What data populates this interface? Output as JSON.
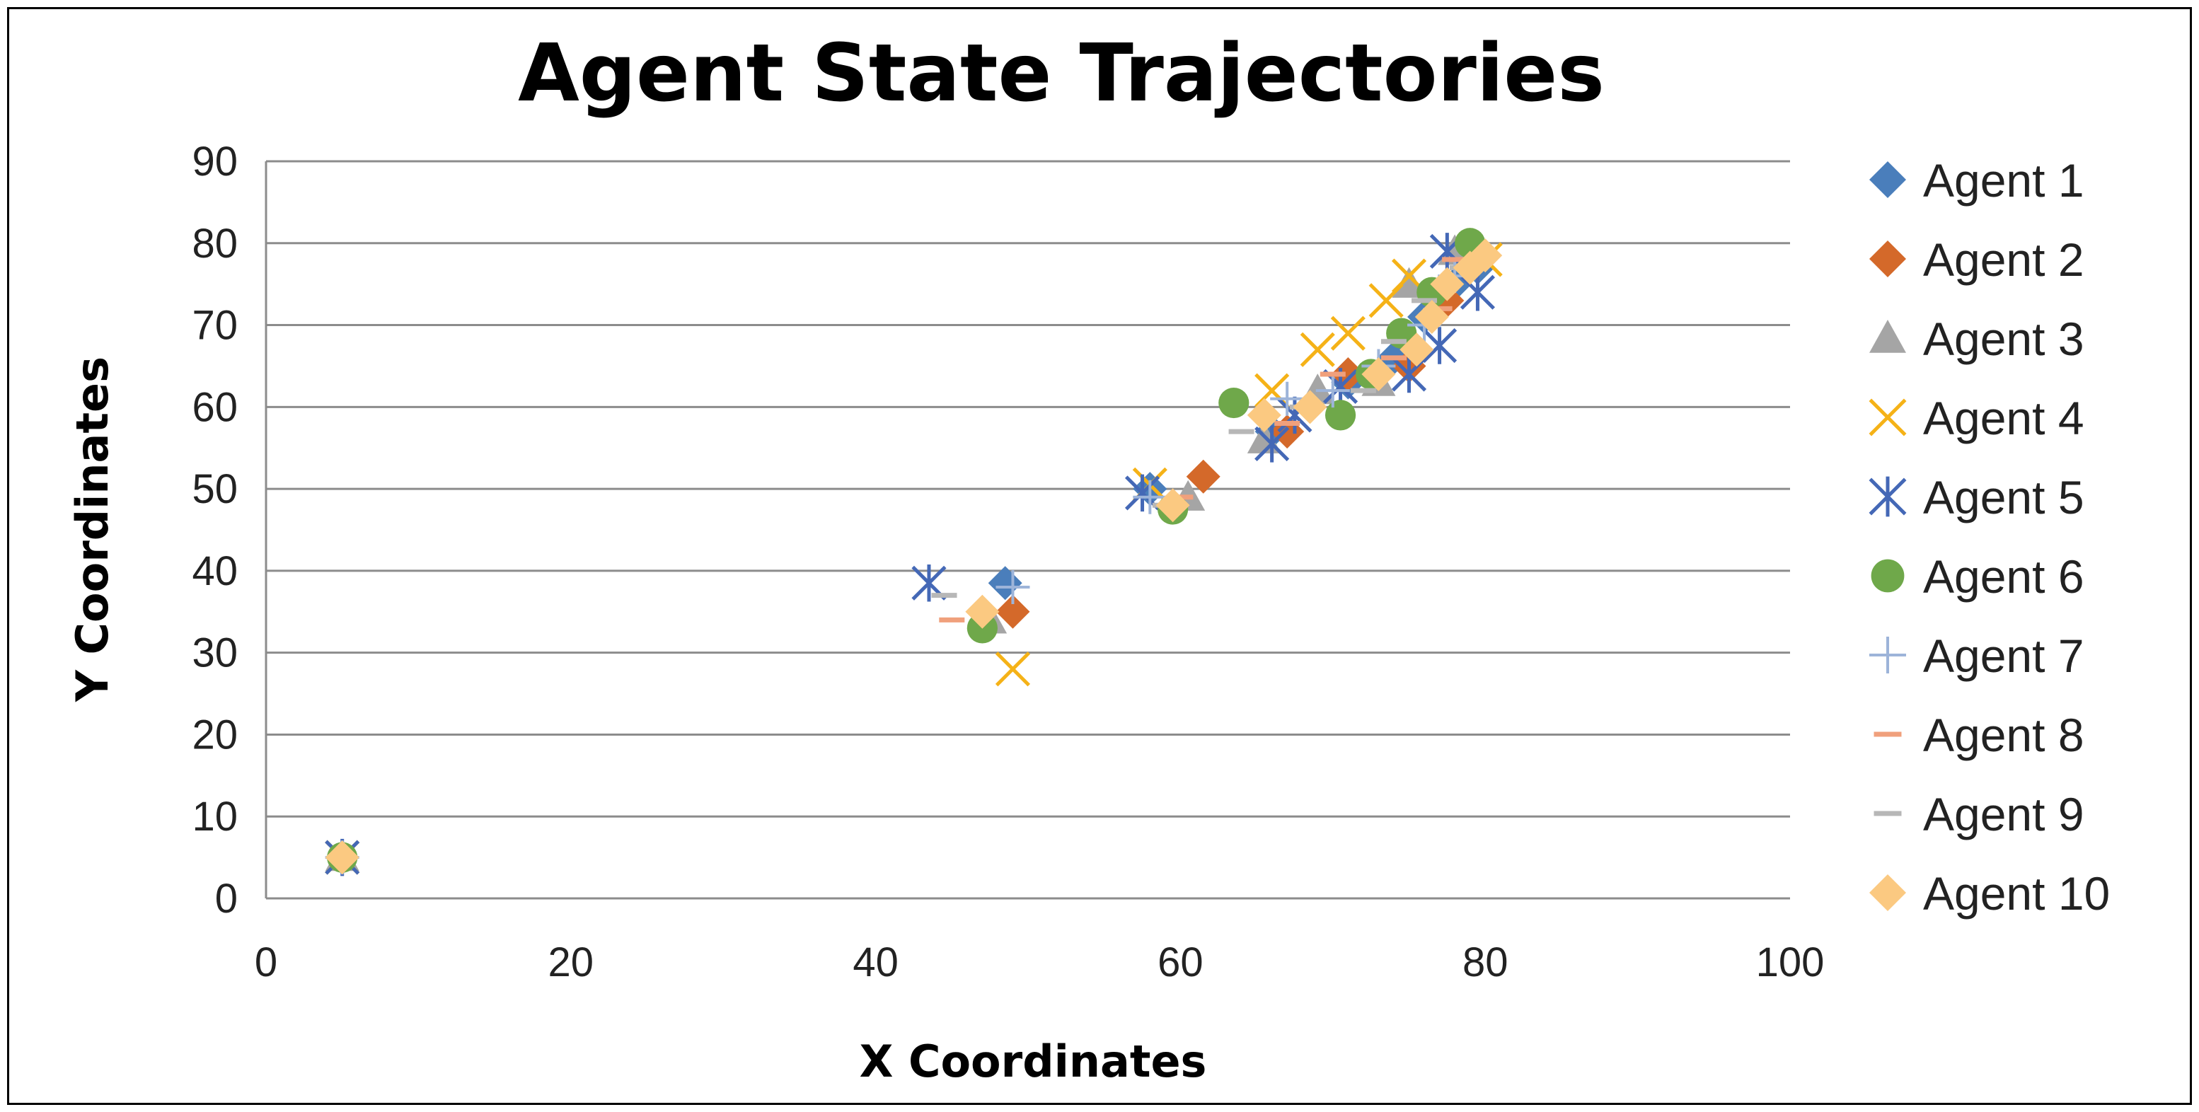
{
  "chart_data": {
    "type": "scatter",
    "title": "Agent State Trajectories",
    "xlabel": "X Coordinates",
    "ylabel": "Y Coordinates",
    "xlim": [
      0,
      100
    ],
    "ylim": [
      0,
      90
    ],
    "xticks": [
      0,
      20,
      40,
      60,
      80,
      100
    ],
    "yticks": [
      0,
      10,
      20,
      30,
      40,
      50,
      60,
      70,
      80,
      90
    ],
    "grid": "horizontal",
    "legend_position": "right",
    "series": [
      {
        "name": "Agent 1",
        "marker": "diamond",
        "color": "#4A7EBB",
        "points": [
          [
            5,
            5
          ],
          [
            48.5,
            38.5
          ],
          [
            58,
            50
          ],
          [
            66,
            57
          ],
          [
            71,
            63
          ],
          [
            74,
            66
          ],
          [
            76,
            71
          ],
          [
            78,
            75
          ],
          [
            79.5,
            77
          ]
        ]
      },
      {
        "name": "Agent 2",
        "marker": "diamond",
        "color": "#D4692A",
        "points": [
          [
            5,
            5
          ],
          [
            49,
            35
          ],
          [
            61.5,
            51.5
          ],
          [
            67,
            57
          ],
          [
            71,
            64
          ],
          [
            75,
            65
          ],
          [
            77.5,
            73
          ],
          [
            78.5,
            79
          ]
        ]
      },
      {
        "name": "Agent 3",
        "marker": "triangle",
        "color": "#A5A5A5",
        "points": [
          [
            5,
            5
          ],
          [
            47.5,
            34
          ],
          [
            60.5,
            49
          ],
          [
            65.5,
            56
          ],
          [
            69,
            62
          ],
          [
            73,
            63
          ],
          [
            75,
            75
          ],
          [
            78,
            79
          ]
        ]
      },
      {
        "name": "Agent 4",
        "marker": "x",
        "color": "#F5B217",
        "points": [
          [
            5,
            5
          ],
          [
            49,
            28
          ],
          [
            58,
            50.5
          ],
          [
            66,
            62
          ],
          [
            69,
            67
          ],
          [
            71,
            69
          ],
          [
            73.5,
            73
          ],
          [
            75,
            76
          ],
          [
            80,
            78
          ]
        ]
      },
      {
        "name": "Agent 5",
        "marker": "asterisk",
        "color": "#4468B6",
        "points": [
          [
            5,
            5
          ],
          [
            43.5,
            38.5
          ],
          [
            57.5,
            49.5
          ],
          [
            66,
            55.5
          ],
          [
            67.5,
            59
          ],
          [
            70.5,
            62.5
          ],
          [
            75,
            64
          ],
          [
            77,
            67.5
          ],
          [
            77.5,
            79
          ],
          [
            79.5,
            74
          ]
        ]
      },
      {
        "name": "Agent 6",
        "marker": "circle",
        "color": "#6FA84A",
        "points": [
          [
            5,
            5
          ],
          [
            47,
            33
          ],
          [
            59.5,
            47.5
          ],
          [
            63.5,
            60.5
          ],
          [
            70.5,
            59
          ],
          [
            72.5,
            64
          ],
          [
            74.5,
            69
          ],
          [
            76.5,
            74
          ],
          [
            79,
            80
          ]
        ]
      },
      {
        "name": "Agent 7",
        "marker": "plus",
        "color": "#9DB4D9",
        "points": [
          [
            5,
            5
          ],
          [
            49,
            38
          ],
          [
            58,
            49
          ],
          [
            67,
            61
          ],
          [
            70,
            62
          ],
          [
            73,
            65
          ],
          [
            76,
            70
          ],
          [
            78,
            76
          ]
        ]
      },
      {
        "name": "Agent 8",
        "marker": "dash",
        "color": "#F0A07C",
        "points": [
          [
            5,
            5
          ],
          [
            45,
            34
          ],
          [
            60,
            49
          ],
          [
            67,
            58
          ],
          [
            70,
            64
          ],
          [
            74,
            66
          ],
          [
            77,
            72
          ],
          [
            78,
            78
          ]
        ]
      },
      {
        "name": "Agent 9",
        "marker": "dash",
        "color": "#B7B7B7",
        "points": [
          [
            5,
            5
          ],
          [
            44.5,
            37
          ],
          [
            59,
            48
          ],
          [
            64,
            57
          ],
          [
            68,
            60
          ],
          [
            72,
            62
          ],
          [
            74,
            68
          ],
          [
            76,
            73
          ],
          [
            78.5,
            77
          ]
        ]
      },
      {
        "name": "Agent 10",
        "marker": "diamond",
        "color": "#FBC981",
        "points": [
          [
            5,
            5
          ],
          [
            47,
            35
          ],
          [
            59.5,
            48
          ],
          [
            65.5,
            59
          ],
          [
            68.5,
            60
          ],
          [
            73,
            64
          ],
          [
            75.5,
            67
          ],
          [
            76.5,
            71
          ],
          [
            77.5,
            75
          ],
          [
            79,
            77
          ],
          [
            80,
            78.5
          ]
        ]
      }
    ]
  }
}
